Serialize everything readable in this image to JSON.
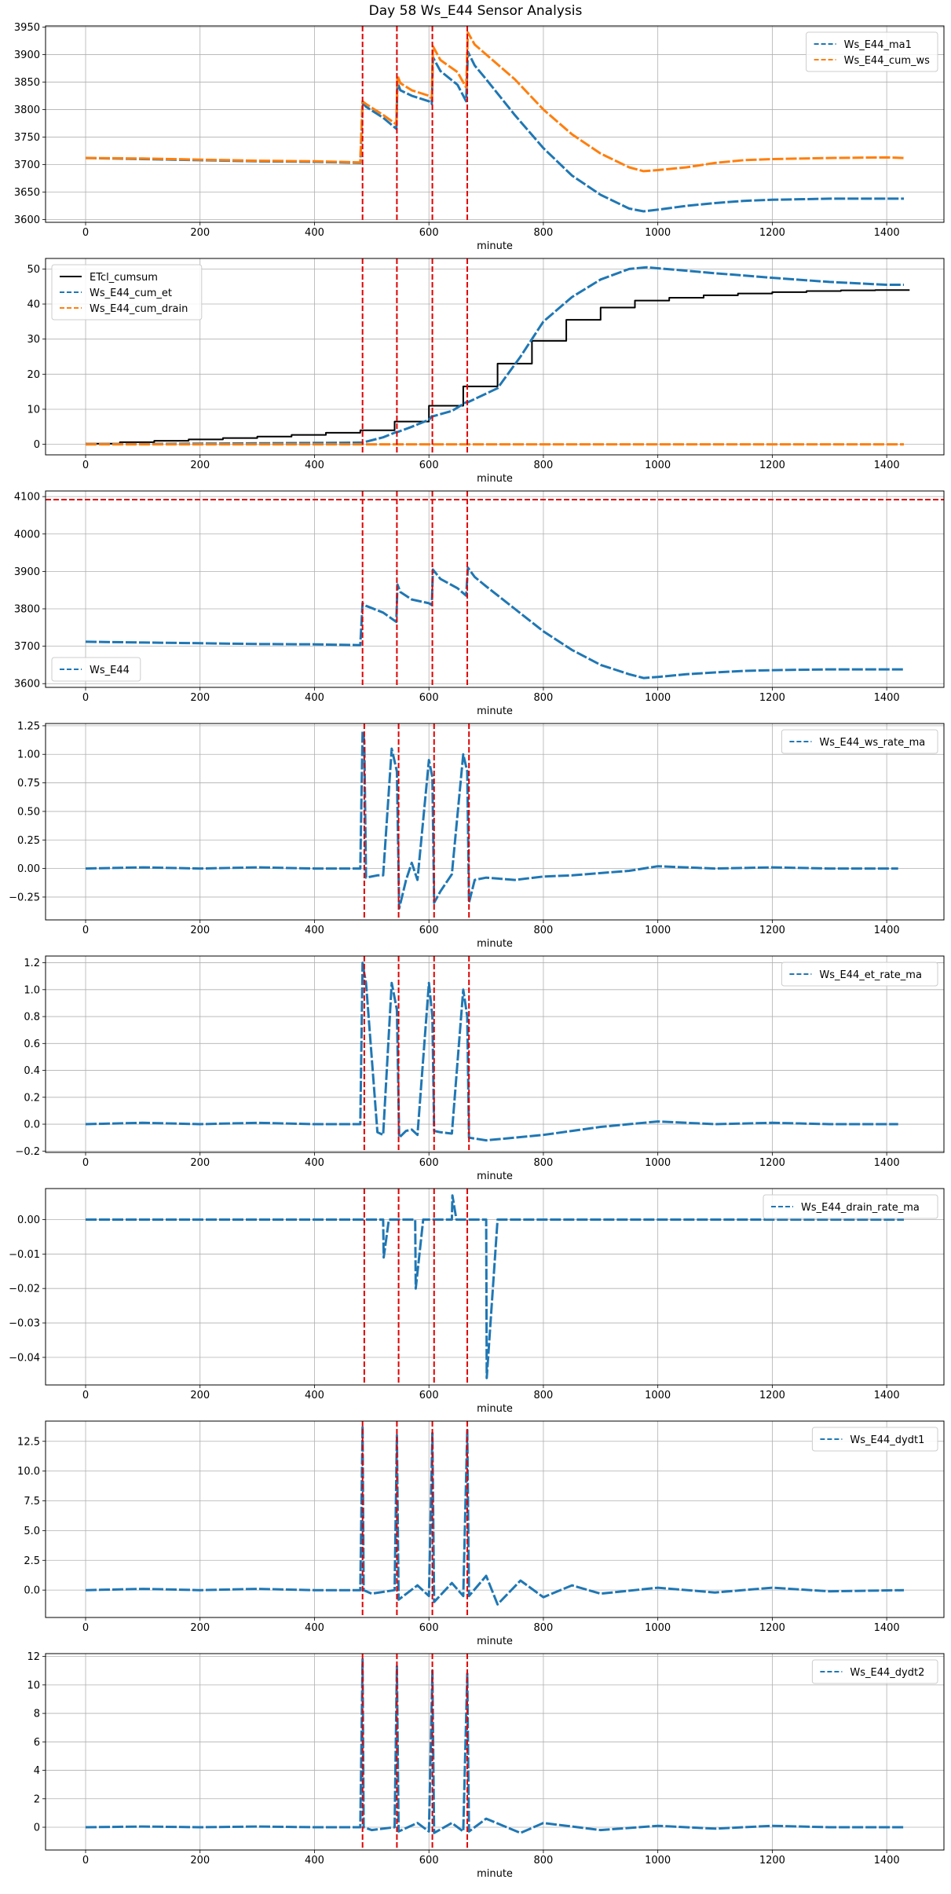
{
  "figure_title": "Day 58 Ws_E44 Sensor Analysis",
  "colors": {
    "blue": "#1f77b4",
    "orange": "#ff7f0e",
    "black": "#000000",
    "red": "#e00000",
    "grid": "#b0b0b0"
  },
  "chart_data": [
    {
      "type": "line",
      "xlabel": "minute",
      "xlim": [
        -70,
        1500
      ],
      "xticks": [
        0,
        200,
        400,
        600,
        800,
        1000,
        1200,
        1400
      ],
      "ylim": [
        3595,
        3952
      ],
      "yticks": [
        3600,
        3650,
        3700,
        3750,
        3800,
        3850,
        3900,
        3950
      ],
      "legend_loc": "upper-right",
      "vlines": [
        484,
        544,
        606,
        667
      ],
      "series": [
        {
          "name": "Ws_E44_ma1",
          "color": "blue",
          "style": "dashed",
          "x": [
            0,
            100,
            200,
            300,
            400,
            480,
            484,
            490,
            520,
            543,
            545,
            550,
            570,
            600,
            605,
            607,
            620,
            650,
            665,
            668,
            680,
            700,
            750,
            800,
            850,
            900,
            950,
            975,
            1000,
            1050,
            1100,
            1150,
            1200,
            1300,
            1400,
            1430
          ],
          "y": [
            3712,
            3710,
            3708,
            3706,
            3705,
            3703,
            3812,
            3805,
            3785,
            3765,
            3850,
            3835,
            3825,
            3815,
            3810,
            3895,
            3870,
            3845,
            3815,
            3905,
            3880,
            3855,
            3790,
            3730,
            3680,
            3645,
            3620,
            3615,
            3618,
            3625,
            3630,
            3634,
            3636,
            3638,
            3638,
            3638
          ]
        },
        {
          "name": "Ws_E44_cum_ws",
          "color": "orange",
          "style": "dashed",
          "x": [
            0,
            100,
            200,
            300,
            400,
            480,
            484,
            490,
            520,
            543,
            545,
            550,
            570,
            600,
            605,
            607,
            620,
            650,
            665,
            668,
            680,
            700,
            750,
            800,
            850,
            900,
            950,
            975,
            1000,
            1050,
            1100,
            1150,
            1200,
            1300,
            1400,
            1430
          ],
          "y": [
            3712,
            3711,
            3709,
            3707,
            3706,
            3704,
            3815,
            3810,
            3790,
            3773,
            3862,
            3848,
            3835,
            3825,
            3820,
            3915,
            3890,
            3868,
            3840,
            3940,
            3918,
            3900,
            3855,
            3800,
            3755,
            3720,
            3695,
            3688,
            3690,
            3695,
            3703,
            3708,
            3710,
            3712,
            3713,
            3712
          ]
        }
      ]
    },
    {
      "type": "line",
      "xlabel": "minute",
      "xlim": [
        -70,
        1500
      ],
      "xticks": [
        0,
        200,
        400,
        600,
        800,
        1000,
        1200,
        1400
      ],
      "ylim": [
        -3,
        53
      ],
      "yticks": [
        0,
        10,
        20,
        30,
        40,
        50
      ],
      "legend_loc": "upper-left",
      "vlines": [
        484,
        544,
        606,
        667
      ],
      "series": [
        {
          "name": "ETcl_cumsum",
          "color": "black",
          "style": "step",
          "x": [
            0,
            60,
            120,
            180,
            240,
            300,
            360,
            420,
            480,
            540,
            600,
            660,
            720,
            780,
            840,
            900,
            960,
            1020,
            1080,
            1140,
            1200,
            1260,
            1320,
            1380,
            1440
          ],
          "y": [
            0.2,
            0.6,
            1.0,
            1.4,
            1.8,
            2.2,
            2.7,
            3.3,
            4.0,
            6.5,
            11.0,
            16.5,
            23.0,
            29.5,
            35.5,
            39.0,
            41.0,
            41.8,
            42.5,
            43.0,
            43.4,
            43.7,
            43.9,
            44.0,
            44.0
          ]
        },
        {
          "name": "Ws_E44_cum_et",
          "color": "blue",
          "style": "dashed",
          "x": [
            0,
            100,
            200,
            300,
            400,
            480,
            484,
            520,
            543,
            545,
            570,
            600,
            605,
            607,
            640,
            665,
            668,
            720,
            760,
            800,
            850,
            900,
            950,
            980,
            1000,
            1100,
            1200,
            1300,
            1400,
            1430
          ],
          "y": [
            0,
            0.1,
            0.2,
            0.3,
            0.4,
            0.5,
            0.5,
            2.0,
            3.5,
            3.5,
            5.0,
            7.0,
            8.0,
            8.0,
            9.5,
            12.0,
            12.0,
            16.0,
            25.0,
            35.0,
            42.0,
            47.0,
            50.0,
            50.5,
            50.2,
            48.8,
            47.5,
            46.3,
            45.5,
            45.5
          ]
        },
        {
          "name": "Ws_E44_cum_drain",
          "color": "orange",
          "style": "dashed",
          "x": [
            0,
            1430
          ],
          "y": [
            0,
            0
          ]
        }
      ]
    },
    {
      "type": "line",
      "xlabel": "minute",
      "xlim": [
        -70,
        1500
      ],
      "xticks": [
        0,
        200,
        400,
        600,
        800,
        1000,
        1200,
        1400
      ],
      "ylim": [
        3590,
        4115
      ],
      "yticks": [
        3600,
        3700,
        3800,
        3900,
        4000,
        4100
      ],
      "legend_loc": "lower-left",
      "vlines": [
        484,
        544,
        606,
        667
      ],
      "hline": 4092,
      "series": [
        {
          "name": "Ws_E44",
          "color": "blue",
          "style": "dashed",
          "x": [
            0,
            100,
            200,
            300,
            400,
            480,
            484,
            490,
            520,
            543,
            545,
            550,
            570,
            600,
            605,
            607,
            620,
            650,
            665,
            668,
            680,
            700,
            750,
            800,
            850,
            900,
            950,
            975,
            1000,
            1050,
            1100,
            1150,
            1200,
            1300,
            1400,
            1430
          ],
          "y": [
            3712,
            3710,
            3708,
            3706,
            3705,
            3703,
            3815,
            3808,
            3790,
            3765,
            3865,
            3845,
            3825,
            3815,
            3810,
            3905,
            3880,
            3855,
            3835,
            3910,
            3885,
            3860,
            3800,
            3740,
            3690,
            3650,
            3625,
            3615,
            3618,
            3625,
            3630,
            3634,
            3636,
            3638,
            3638,
            3638
          ]
        }
      ]
    },
    {
      "type": "line",
      "xlabel": "minute",
      "xlim": [
        -70,
        1500
      ],
      "xticks": [
        0,
        200,
        400,
        600,
        800,
        1000,
        1200,
        1400
      ],
      "ylim": [
        -0.45,
        1.27
      ],
      "yticks": [
        -0.25,
        0.0,
        0.25,
        0.5,
        0.75,
        1.0,
        1.25
      ],
      "yticklabels": [
        "−0.25",
        "0.00",
        "0.25",
        "0.50",
        "0.75",
        "1.00",
        "1.25"
      ],
      "legend_loc": "upper-right",
      "vlines": [
        487,
        547,
        609,
        670
      ],
      "series": [
        {
          "name": "Ws_E44_ws_rate_ma",
          "color": "blue",
          "style": "dashed",
          "x": [
            0,
            100,
            200,
            300,
            400,
            480,
            484,
            487,
            490,
            510,
            520,
            535,
            544,
            548,
            560,
            570,
            580,
            600,
            606,
            609,
            620,
            640,
            660,
            667,
            670,
            680,
            700,
            750,
            800,
            850,
            900,
            950,
            1000,
            1100,
            1200,
            1300,
            1420
          ],
          "y": [
            0,
            0.01,
            0,
            0.01,
            0,
            0,
            1.2,
            1.12,
            -0.08,
            -0.06,
            -0.06,
            1.05,
            0.85,
            -0.35,
            -0.1,
            0.05,
            -0.1,
            0.95,
            0.8,
            -0.3,
            -0.2,
            -0.05,
            1.0,
            0.85,
            -0.3,
            -0.1,
            -0.08,
            -0.1,
            -0.07,
            -0.06,
            -0.04,
            -0.02,
            0.02,
            0.0,
            0.01,
            0.0,
            0.0
          ]
        }
      ]
    },
    {
      "type": "line",
      "xlabel": "minute",
      "xlim": [
        -70,
        1500
      ],
      "xticks": [
        0,
        200,
        400,
        600,
        800,
        1000,
        1200,
        1400
      ],
      "ylim": [
        -0.21,
        1.25
      ],
      "yticks": [
        -0.2,
        0.0,
        0.2,
        0.4,
        0.6,
        0.8,
        1.0,
        1.2
      ],
      "yticklabels": [
        "−0.2",
        "0.0",
        "0.2",
        "0.4",
        "0.6",
        "0.8",
        "1.0",
        "1.2"
      ],
      "legend_loc": "upper-right",
      "vlines": [
        487,
        547,
        609,
        670
      ],
      "series": [
        {
          "name": "Ws_E44_et_rate_ma",
          "color": "blue",
          "style": "dashed",
          "x": [
            0,
            100,
            200,
            300,
            400,
            480,
            484,
            487,
            490,
            510,
            520,
            535,
            544,
            548,
            560,
            570,
            580,
            600,
            606,
            609,
            620,
            640,
            660,
            667,
            670,
            700,
            750,
            800,
            850,
            900,
            950,
            1000,
            1100,
            1200,
            1300,
            1420
          ],
          "y": [
            0,
            0.01,
            0,
            0.01,
            0,
            0,
            1.2,
            1.12,
            1.05,
            -0.06,
            -0.08,
            1.05,
            0.85,
            -0.1,
            -0.05,
            -0.04,
            -0.08,
            1.05,
            0.8,
            -0.05,
            -0.06,
            -0.07,
            1.0,
            0.8,
            -0.1,
            -0.12,
            -0.1,
            -0.08,
            -0.05,
            -0.02,
            0.0,
            0.02,
            0.0,
            0.01,
            0.0,
            0.0
          ]
        }
      ]
    },
    {
      "type": "line",
      "xlabel": "minute",
      "xlim": [
        -70,
        1500
      ],
      "xticks": [
        0,
        200,
        400,
        600,
        800,
        1000,
        1200,
        1400
      ],
      "ylim": [
        -0.048,
        0.009
      ],
      "yticks": [
        -0.04,
        -0.03,
        -0.02,
        -0.01,
        0.0
      ],
      "yticklabels": [
        "−0.04",
        "−0.03",
        "−0.02",
        "−0.01",
        "0.00"
      ],
      "legend_loc": "upper-right",
      "vlines": [
        487,
        547,
        609,
        667
      ],
      "series": [
        {
          "name": "Ws_E44_drain_rate_ma",
          "color": "blue",
          "style": "dashed",
          "x": [
            0,
            484,
            520,
            521,
            530,
            545,
            576,
            577,
            590,
            609,
            640,
            641,
            648,
            670,
            700,
            701,
            720,
            1430
          ],
          "y": [
            0,
            0,
            0,
            -0.011,
            0,
            0,
            0,
            -0.02,
            0,
            0,
            0,
            0.007,
            0,
            0,
            0,
            -0.046,
            0,
            0
          ]
        }
      ]
    },
    {
      "type": "line",
      "xlabel": "minute",
      "xlim": [
        -70,
        1500
      ],
      "xticks": [
        0,
        200,
        400,
        600,
        800,
        1000,
        1200,
        1400
      ],
      "ylim": [
        -2.3,
        14.2
      ],
      "yticks": [
        0.0,
        2.5,
        5.0,
        7.5,
        10.0,
        12.5
      ],
      "yticklabels": [
        "0.0",
        "2.5",
        "5.0",
        "7.5",
        "10.0",
        "12.5"
      ],
      "legend_loc": "upper-right",
      "vlines": [
        484,
        544,
        606,
        667
      ],
      "series": [
        {
          "name": "Ws_E44_dydt1",
          "color": "blue",
          "style": "dashed",
          "x": [
            0,
            100,
            200,
            300,
            400,
            480,
            484,
            486,
            500,
            540,
            544,
            547,
            580,
            600,
            606,
            609,
            640,
            660,
            667,
            670,
            700,
            720,
            760,
            800,
            850,
            900,
            1000,
            1100,
            1200,
            1300,
            1430
          ],
          "y": [
            0,
            0.1,
            0,
            0.1,
            0,
            0,
            13.8,
            0,
            -0.3,
            0,
            13.0,
            -0.8,
            0.4,
            -0.5,
            13.2,
            -1.0,
            0.6,
            -0.5,
            13.5,
            -0.5,
            1.2,
            -1.2,
            0.8,
            -0.6,
            0.4,
            -0.3,
            0.2,
            -0.2,
            0.2,
            -0.1,
            0
          ]
        }
      ]
    },
    {
      "type": "line",
      "xlabel": "minute",
      "xlim": [
        -70,
        1500
      ],
      "xticks": [
        0,
        200,
        400,
        600,
        800,
        1000,
        1200,
        1400
      ],
      "ylim": [
        -1.6,
        12.2
      ],
      "yticks": [
        0,
        2,
        4,
        6,
        8,
        10,
        12
      ],
      "legend_loc": "upper-right",
      "vlines": [
        484,
        544,
        606,
        667
      ],
      "series": [
        {
          "name": "Ws_E44_dydt2",
          "color": "blue",
          "style": "dashed",
          "x": [
            0,
            100,
            200,
            300,
            400,
            480,
            484,
            486,
            500,
            540,
            544,
            547,
            580,
            600,
            606,
            609,
            640,
            660,
            667,
            670,
            700,
            760,
            800,
            900,
            1000,
            1100,
            1200,
            1300,
            1430
          ],
          "y": [
            0,
            0.05,
            0,
            0.05,
            0,
            0,
            11.8,
            0,
            -0.2,
            0,
            11.3,
            -0.3,
            0.3,
            -0.3,
            11.0,
            -0.4,
            0.3,
            -0.3,
            10.8,
            -0.3,
            0.6,
            -0.4,
            0.3,
            -0.2,
            0.1,
            -0.1,
            0.1,
            0,
            0
          ]
        }
      ]
    }
  ]
}
